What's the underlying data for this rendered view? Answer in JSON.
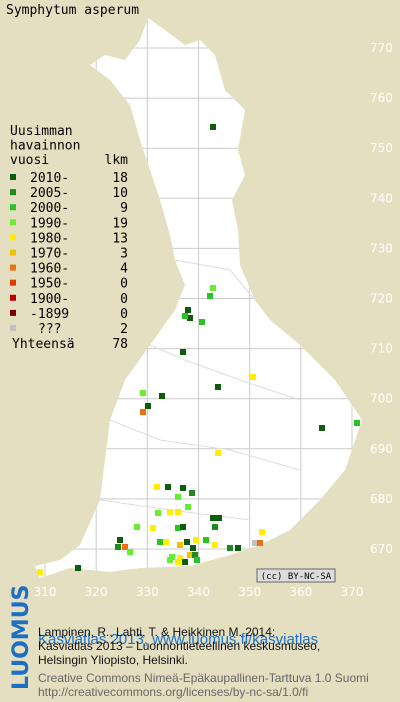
{
  "header": {
    "title": "Symphytum asperum"
  },
  "legend": {
    "heading": [
      "Uusimman",
      "havainnon",
      "vuosi"
    ],
    "count_heading": "lkm",
    "rows": [
      {
        "label": "2010-",
        "count": 18,
        "color": "#0b5e0b"
      },
      {
        "label": "2005-",
        "count": 10,
        "color": "#1f8a1f"
      },
      {
        "label": "2000-",
        "count": 9,
        "color": "#26c426"
      },
      {
        "label": "1990-",
        "count": 19,
        "color": "#66ee33"
      },
      {
        "label": "1980-",
        "count": 13,
        "color": "#ffee00"
      },
      {
        "label": "1970-",
        "count": 3,
        "color": "#f2c200"
      },
      {
        "label": "1960-",
        "count": 4,
        "color": "#f07010"
      },
      {
        "label": "1950-",
        "count": 0,
        "color": "#e03a00"
      },
      {
        "label": "1900-",
        "count": 0,
        "color": "#c00000"
      },
      {
        "label": "-1899",
        "count": 0,
        "color": "#7a0000"
      },
      {
        "label": "???",
        "count": 2,
        "color": "#c0c0c0"
      }
    ],
    "total_label": "Yhteensä",
    "total": 78
  },
  "map": {
    "xticks": [
      310,
      320,
      330,
      340,
      350,
      360,
      370
    ],
    "yticks": [
      670,
      680,
      690,
      700,
      710,
      720,
      730,
      740,
      750,
      760,
      770
    ],
    "license_badge": "(cc) BY-NC-SA"
  },
  "footer": {
    "logo": "LUOMUS",
    "link": "Kasviatlas 2013, www.luomus.fi/kasviatlas",
    "citation": [
      "Lampinen, R., Lahti, T. & Heikkinen M. 2014:",
      "Kasviatlas 2013 – Luonnontieteellinen keskusmuseo,",
      "Helsingin Yliopisto, Helsinki."
    ],
    "license": [
      "Creative Commons Nimeä-Epäkaupallinen-Tarttuva 1.0 Suomi",
      "http://creativecommons.org/licenses/by-nc-sa/1.0/fi"
    ]
  }
}
